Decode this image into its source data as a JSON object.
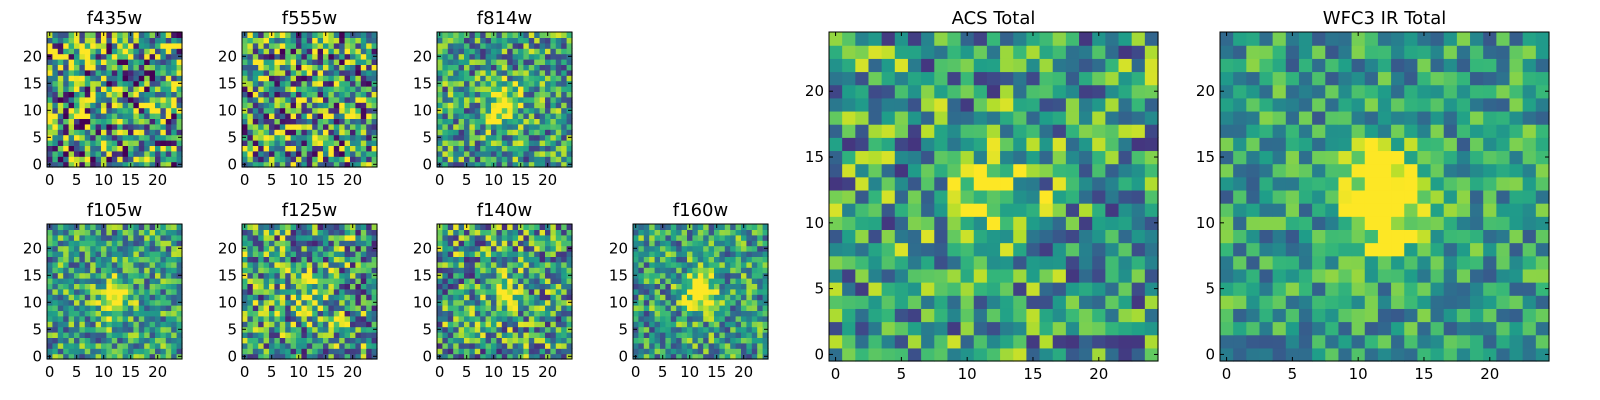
{
  "chart_data": [
    {
      "type": "heatmap",
      "title": "f435w",
      "xticks": [
        "0",
        "5",
        "10",
        "15",
        "20"
      ],
      "yticks": [
        "0",
        "5",
        "10",
        "15",
        "20"
      ],
      "xlim": [
        -0.5,
        24.5
      ],
      "ylim": [
        -0.5,
        24.5
      ],
      "grid_size": 25,
      "colormap": "viridis",
      "source_center": null,
      "source_strength": 0.0,
      "noise_level": 0.75,
      "seed": 11
    },
    {
      "type": "heatmap",
      "title": "f555w",
      "xticks": [
        "0",
        "5",
        "10",
        "15",
        "20"
      ],
      "yticks": [
        "0",
        "5",
        "10",
        "15",
        "20"
      ],
      "xlim": [
        -0.5,
        24.5
      ],
      "ylim": [
        -0.5,
        24.5
      ],
      "grid_size": 25,
      "colormap": "viridis",
      "source_center": [
        12,
        11
      ],
      "source_strength": 0.1,
      "noise_level": 0.7,
      "seed": 23
    },
    {
      "type": "heatmap",
      "title": "f814w",
      "xticks": [
        "0",
        "5",
        "10",
        "15",
        "20"
      ],
      "yticks": [
        "0",
        "5",
        "10",
        "15",
        "20"
      ],
      "xlim": [
        -0.5,
        24.5
      ],
      "ylim": [
        -0.5,
        24.5
      ],
      "grid_size": 25,
      "colormap": "viridis",
      "source_center": [
        12,
        11
      ],
      "source_strength": 0.55,
      "noise_level": 0.5,
      "seed": 37
    },
    {
      "type": "heatmap",
      "title": "f105w",
      "xticks": [
        "0",
        "5",
        "10",
        "15",
        "20"
      ],
      "yticks": [
        "0",
        "5",
        "10",
        "15",
        "20"
      ],
      "xlim": [
        -0.5,
        24.5
      ],
      "ylim": [
        -0.5,
        24.5
      ],
      "grid_size": 25,
      "colormap": "viridis",
      "source_center": [
        12,
        11
      ],
      "source_strength": 0.6,
      "noise_level": 0.45,
      "seed": 41
    },
    {
      "type": "heatmap",
      "title": "f125w",
      "xticks": [
        "0",
        "5",
        "10",
        "15",
        "20"
      ],
      "yticks": [
        "0",
        "5",
        "10",
        "15",
        "20"
      ],
      "xlim": [
        -0.5,
        24.5
      ],
      "ylim": [
        -0.5,
        24.5
      ],
      "grid_size": 25,
      "colormap": "viridis",
      "source_center": [
        12,
        11
      ],
      "source_strength": 0.35,
      "noise_level": 0.6,
      "seed": 53
    },
    {
      "type": "heatmap",
      "title": "f140w",
      "xticks": [
        "0",
        "5",
        "10",
        "15",
        "20"
      ],
      "yticks": [
        "0",
        "5",
        "10",
        "15",
        "20"
      ],
      "xlim": [
        -0.5,
        24.5
      ],
      "ylim": [
        -0.5,
        24.5
      ],
      "grid_size": 25,
      "colormap": "viridis",
      "source_center": [
        12,
        12
      ],
      "source_strength": 0.4,
      "noise_level": 0.55,
      "seed": 67
    },
    {
      "type": "heatmap",
      "title": "f160w",
      "xticks": [
        "0",
        "5",
        "10",
        "15",
        "20"
      ],
      "yticks": [
        "0",
        "5",
        "10",
        "15",
        "20"
      ],
      "xlim": [
        -0.5,
        24.5
      ],
      "ylim": [
        -0.5,
        24.5
      ],
      "grid_size": 25,
      "colormap": "viridis",
      "source_center": [
        12,
        12
      ],
      "source_strength": 0.7,
      "noise_level": 0.45,
      "seed": 79
    },
    {
      "type": "heatmap",
      "title": "ACS Total",
      "xticks": [
        "0",
        "5",
        "10",
        "15",
        "20"
      ],
      "yticks": [
        "0",
        "5",
        "10",
        "15",
        "20"
      ],
      "xlim": [
        -0.5,
        24.5
      ],
      "ylim": [
        -0.5,
        24.5
      ],
      "grid_size": 25,
      "colormap": "viridis",
      "source_center": [
        12,
        12
      ],
      "source_strength": 0.5,
      "noise_level": 0.5,
      "seed": 83
    },
    {
      "type": "heatmap",
      "title": "WFC3 IR Total",
      "xticks": [
        "0",
        "5",
        "10",
        "15",
        "20"
      ],
      "yticks": [
        "0",
        "5",
        "10",
        "15",
        "20"
      ],
      "xlim": [
        -0.5,
        24.5
      ],
      "ylim": [
        -0.5,
        24.5
      ],
      "grid_size": 25,
      "colormap": "viridis",
      "source_center": [
        12,
        12
      ],
      "source_strength": 0.8,
      "noise_level": 0.35,
      "seed": 97
    }
  ]
}
